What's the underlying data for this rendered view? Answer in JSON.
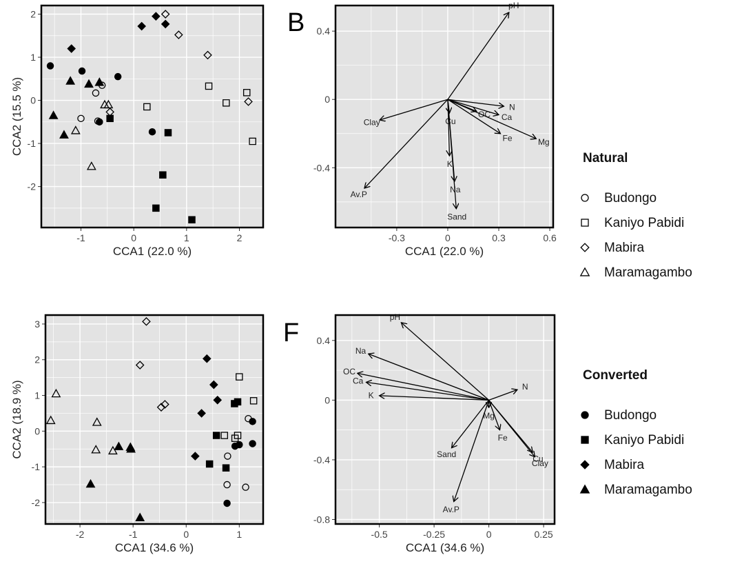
{
  "legends": [
    {
      "title": "Natural",
      "filled": false,
      "items": [
        {
          "label": "Budongo",
          "shape": "circle"
        },
        {
          "label": "Kaniyo Pabidi",
          "shape": "square"
        },
        {
          "label": "Mabira",
          "shape": "diamond"
        },
        {
          "label": "Maramagambo",
          "shape": "triangle"
        }
      ]
    },
    {
      "title": "Converted",
      "filled": true,
      "items": [
        {
          "label": "Budongo",
          "shape": "circle"
        },
        {
          "label": "Kaniyo Pabidi",
          "shape": "square"
        },
        {
          "label": "Mabira",
          "shape": "diamond"
        },
        {
          "label": "Maramagambo",
          "shape": "triangle"
        }
      ]
    }
  ],
  "colors": {
    "panel_bg": "#e3e3e3",
    "grid": "#ffffff",
    "ink": "#000000",
    "frame": "#000000"
  },
  "chart_data": [
    {
      "type": "scatter",
      "panel_label": "",
      "xlabel": "CCA1 (22.0 %)",
      "ylabel": "CCA2 (15.5 %)",
      "xlim": [
        -1.75,
        2.45
      ],
      "ylim": [
        -2.95,
        2.2
      ],
      "xticks": [
        -1,
        0,
        1,
        2
      ],
      "yticks": [
        -2,
        -1,
        0,
        1,
        2
      ],
      "grid": true,
      "series": [
        {
          "name": "Budongo",
          "shape": "circle",
          "filled": false,
          "points": [
            [
              -0.6,
              0.35
            ],
            [
              -0.72,
              0.17
            ],
            [
              -1.0,
              -0.42
            ],
            [
              -0.68,
              -0.48
            ]
          ]
        },
        {
          "name": "Kaniyo Pabidi",
          "shape": "square",
          "filled": false,
          "points": [
            [
              0.25,
              -0.15
            ],
            [
              1.42,
              0.33
            ],
            [
              1.75,
              -0.06
            ],
            [
              2.14,
              0.18
            ],
            [
              2.25,
              -0.95
            ]
          ]
        },
        {
          "name": "Mabira",
          "shape": "diamond",
          "filled": false,
          "points": [
            [
              0.6,
              2.0
            ],
            [
              0.85,
              1.52
            ],
            [
              1.4,
              1.05
            ],
            [
              2.17,
              -0.03
            ],
            [
              -0.45,
              -0.27
            ]
          ]
        },
        {
          "name": "Maramagambo",
          "shape": "triangle",
          "filled": false,
          "points": [
            [
              -0.55,
              -0.1
            ],
            [
              -0.48,
              -0.1
            ],
            [
              -1.1,
              -0.7
            ],
            [
              -0.8,
              -1.53
            ]
          ]
        },
        {
          "name": "Budongo",
          "shape": "circle",
          "filled": true,
          "points": [
            [
              -1.58,
              0.8
            ],
            [
              -0.98,
              0.68
            ],
            [
              -0.3,
              0.55
            ],
            [
              -0.65,
              -0.5
            ],
            [
              0.35,
              -0.73
            ]
          ]
        },
        {
          "name": "Kaniyo Pabidi",
          "shape": "square",
          "filled": true,
          "points": [
            [
              -0.45,
              -0.42
            ],
            [
              0.65,
              -0.75
            ],
            [
              0.55,
              -1.73
            ],
            [
              0.42,
              -2.5
            ],
            [
              1.1,
              -2.77
            ]
          ]
        },
        {
          "name": "Mabira",
          "shape": "diamond",
          "filled": true,
          "points": [
            [
              0.42,
              1.95
            ],
            [
              0.15,
              1.72
            ],
            [
              0.6,
              1.77
            ],
            [
              -1.18,
              1.2
            ]
          ]
        },
        {
          "name": "Maramagambo",
          "shape": "triangle",
          "filled": true,
          "points": [
            [
              -1.2,
              0.45
            ],
            [
              -0.85,
              0.38
            ],
            [
              -0.65,
              0.42
            ],
            [
              -1.52,
              -0.35
            ],
            [
              -1.32,
              -0.8
            ]
          ]
        }
      ]
    },
    {
      "type": "biplot",
      "panel_label": "B",
      "xlabel": "CCA1 (22.0 %)",
      "ylabel": "",
      "xlim": [
        -0.66,
        0.62
      ],
      "ylim": [
        -0.75,
        0.55
      ],
      "xticks": [
        -0.3,
        0.0,
        0.3,
        0.6
      ],
      "yticks": [
        -0.4,
        0.0,
        0.4
      ],
      "grid": true,
      "vectors": [
        {
          "name": "pH",
          "x": 0.36,
          "y": 0.51
        },
        {
          "name": "N",
          "x": 0.33,
          "y": -0.04
        },
        {
          "name": "OC",
          "x": 0.17,
          "y": -0.07
        },
        {
          "name": "Ca",
          "x": 0.3,
          "y": -0.09
        },
        {
          "name": "Fe",
          "x": 0.31,
          "y": -0.2
        },
        {
          "name": "Mg",
          "x": 0.52,
          "y": -0.23
        },
        {
          "name": "Cu",
          "x": 0.01,
          "y": -0.08
        },
        {
          "name": "K",
          "x": 0.01,
          "y": -0.33
        },
        {
          "name": "Na",
          "x": 0.04,
          "y": -0.48
        },
        {
          "name": "Sand",
          "x": 0.05,
          "y": -0.64
        },
        {
          "name": "Clay",
          "x": -0.4,
          "y": -0.12
        },
        {
          "name": "Av.P",
          "x": -0.49,
          "y": -0.52
        }
      ]
    },
    {
      "type": "scatter",
      "panel_label": "",
      "xlabel": "CCA1 (34.6 %)",
      "ylabel": "CCA2 (18.9 %)",
      "xlim": [
        -2.65,
        1.45
      ],
      "ylim": [
        -2.6,
        3.25
      ],
      "xticks": [
        -2,
        -1,
        0,
        1
      ],
      "yticks": [
        -2,
        -1,
        0,
        1,
        2,
        3
      ],
      "grid": true,
      "series": [
        {
          "name": "Budongo",
          "shape": "circle",
          "filled": false,
          "points": [
            [
              1.17,
              0.35
            ],
            [
              1.12,
              -1.57
            ],
            [
              0.77,
              -1.5
            ],
            [
              0.78,
              -0.7
            ]
          ]
        },
        {
          "name": "Kaniyo Pabidi",
          "shape": "square",
          "filled": false,
          "points": [
            [
              1.0,
              1.52
            ],
            [
              1.27,
              0.85
            ],
            [
              0.72,
              -0.12
            ],
            [
              0.92,
              -0.2
            ],
            [
              0.97,
              -0.12
            ]
          ]
        },
        {
          "name": "Mabira",
          "shape": "diamond",
          "filled": false,
          "points": [
            [
              -0.75,
              3.07
            ],
            [
              -0.87,
              1.85
            ],
            [
              -0.4,
              0.75
            ],
            [
              -0.47,
              0.67
            ]
          ]
        },
        {
          "name": "Maramagambo",
          "shape": "triangle",
          "filled": false,
          "points": [
            [
              -2.45,
              1.05
            ],
            [
              -2.55,
              0.3
            ],
            [
              -1.68,
              0.25
            ],
            [
              -1.7,
              -0.52
            ],
            [
              -1.38,
              -0.55
            ]
          ]
        },
        {
          "name": "Budongo",
          "shape": "circle",
          "filled": true,
          "points": [
            [
              1.25,
              0.27
            ],
            [
              1.25,
              -0.35
            ],
            [
              1.0,
              -0.38
            ],
            [
              0.92,
              -0.42
            ],
            [
              0.77,
              -2.02
            ]
          ]
        },
        {
          "name": "Kaniyo Pabidi",
          "shape": "square",
          "filled": true,
          "points": [
            [
              0.97,
              0.82
            ],
            [
              0.91,
              0.77
            ],
            [
              0.57,
              -0.12
            ],
            [
              0.75,
              -1.03
            ],
            [
              0.44,
              -0.92
            ]
          ]
        },
        {
          "name": "Mabira",
          "shape": "diamond",
          "filled": true,
          "points": [
            [
              0.39,
              2.03
            ],
            [
              0.52,
              1.3
            ],
            [
              0.59,
              0.87
            ],
            [
              0.29,
              0.5
            ],
            [
              0.17,
              -0.7
            ]
          ]
        },
        {
          "name": "Maramagambo",
          "shape": "triangle",
          "filled": true,
          "points": [
            [
              -1.27,
              -0.43
            ],
            [
              -1.05,
              -0.45
            ],
            [
              -1.04,
              -0.5
            ],
            [
              -1.8,
              -1.48
            ],
            [
              -0.87,
              -2.42
            ]
          ]
        }
      ]
    },
    {
      "type": "biplot",
      "panel_label": "F",
      "xlabel": "CCA1 (34.6 %)",
      "ylabel": "",
      "xlim": [
        -0.7,
        0.3
      ],
      "ylim": [
        -0.83,
        0.57
      ],
      "xticks": [
        -0.5,
        -0.25,
        0.0,
        0.25
      ],
      "yticks": [
        -0.8,
        -0.4,
        0.0,
        0.4
      ],
      "grid": true,
      "vectors": [
        {
          "name": "pH",
          "x": -0.4,
          "y": 0.52
        },
        {
          "name": "Na",
          "x": -0.55,
          "y": 0.31
        },
        {
          "name": "OC",
          "x": -0.6,
          "y": 0.18
        },
        {
          "name": "Ca",
          "x": -0.56,
          "y": 0.12
        },
        {
          "name": "K",
          "x": -0.5,
          "y": 0.03
        },
        {
          "name": "N",
          "x": 0.13,
          "y": 0.07
        },
        {
          "name": "Mg",
          "x": 0.0,
          "y": -0.05
        },
        {
          "name": "Fe",
          "x": 0.05,
          "y": -0.2
        },
        {
          "name": "Cu",
          "x": 0.2,
          "y": -0.35
        },
        {
          "name": "Clay",
          "x": 0.21,
          "y": -0.38
        },
        {
          "name": "Sand",
          "x": -0.17,
          "y": -0.32
        },
        {
          "name": "Av.P",
          "x": -0.16,
          "y": -0.68
        }
      ]
    }
  ]
}
